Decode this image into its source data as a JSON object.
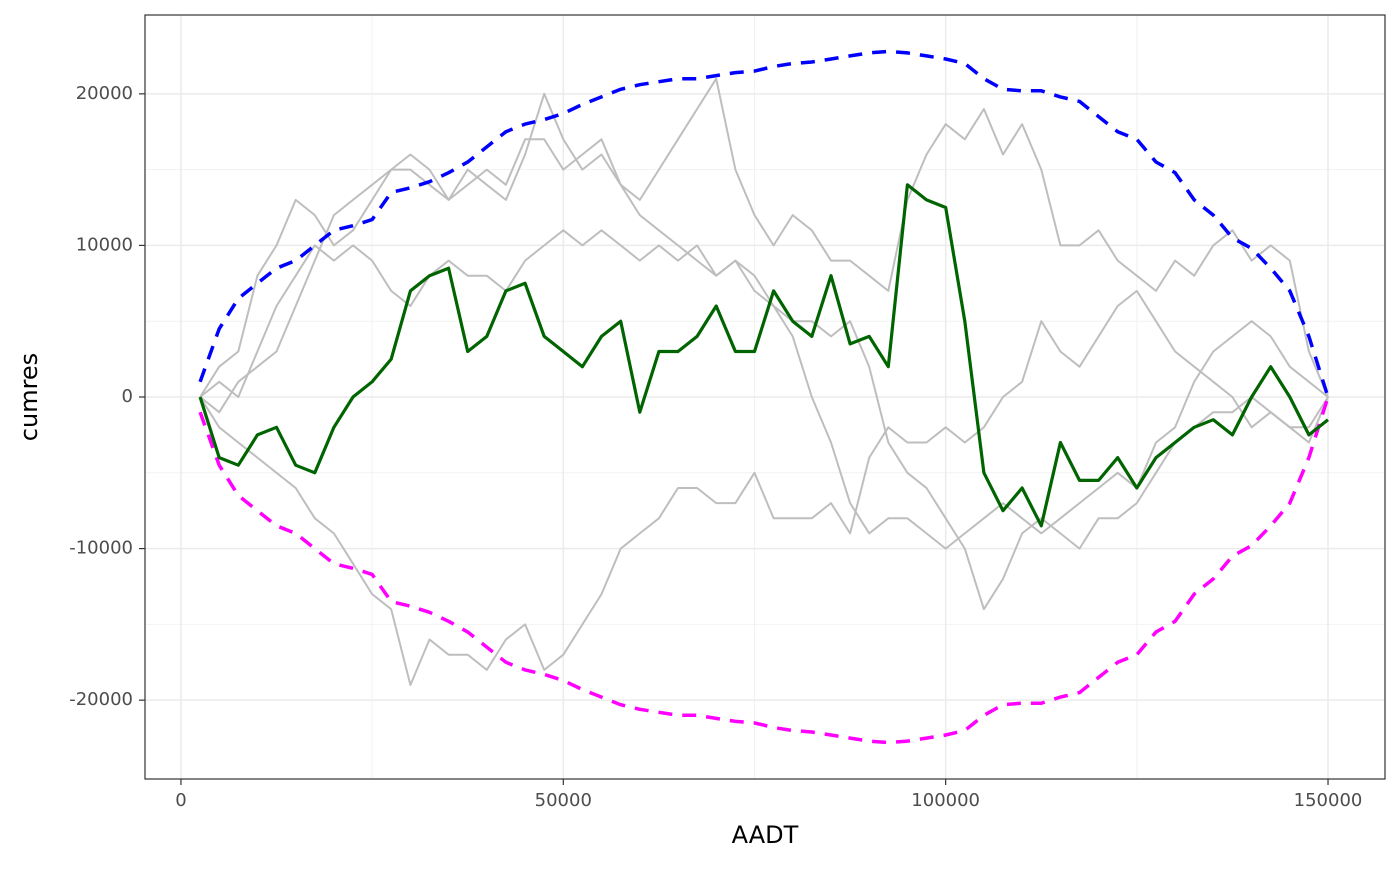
{
  "chart_data": {
    "type": "line",
    "x_label": "AADT",
    "y_label": "cumres",
    "x": [
      2500,
      5000,
      7500,
      10000,
      12500,
      15000,
      17500,
      20000,
      22500,
      25000,
      27500,
      30000,
      32500,
      35000,
      37500,
      40000,
      42500,
      45000,
      47500,
      50000,
      52500,
      55000,
      57500,
      60000,
      62500,
      65000,
      67500,
      70000,
      72500,
      75000,
      77500,
      80000,
      82500,
      85000,
      87500,
      90000,
      92500,
      95000,
      97500,
      100000,
      102500,
      105000,
      107500,
      110000,
      112500,
      115000,
      117500,
      120000,
      122500,
      125000,
      127500,
      130000,
      132500,
      135000,
      137500,
      140000,
      142500,
      145000,
      147500,
      150000
    ],
    "xlim": [
      -4700,
      157450
    ],
    "xticks": [
      0,
      50000,
      100000,
      150000
    ],
    "ylim": [
      -25200,
      25200
    ],
    "yticks": [
      -20000,
      -10000,
      0,
      10000,
      20000
    ],
    "grid": true,
    "series": [
      {
        "color": "#bebebe",
        "width": 2,
        "dash": false,
        "values": [
          0,
          2000,
          3000,
          8000,
          10000,
          13000,
          12000,
          10000,
          11000,
          13000,
          15000,
          15000,
          14000,
          13000,
          15000,
          14000,
          13000,
          16000,
          20000,
          17000,
          15000,
          16000,
          14000,
          13000,
          15000,
          17000,
          19000,
          21000,
          15000,
          12000,
          10000,
          12000,
          11000,
          9000,
          9000,
          8000,
          7000,
          13000,
          16000,
          18000,
          17000,
          19000,
          16000,
          18000,
          15000,
          10000,
          10000,
          11000,
          9000,
          8000,
          7000,
          9000,
          8000,
          10000,
          11000,
          9000,
          10000,
          9000,
          3000,
          0
        ]
      },
      {
        "color": "#bebebe",
        "width": 2,
        "dash": false,
        "values": [
          0,
          -2000,
          -3000,
          -4000,
          -5000,
          -6000,
          -8000,
          -9000,
          -11000,
          -13000,
          -14000,
          -19000,
          -16000,
          -17000,
          -17000,
          -18000,
          -16000,
          -15000,
          -18000,
          -17000,
          -15000,
          -13000,
          -10000,
          -9000,
          -8000,
          -6000,
          -6000,
          -7000,
          -7000,
          -5000,
          -8000,
          -8000,
          -8000,
          -7000,
          -9000,
          -4000,
          -2000,
          -3000,
          -3000,
          -2000,
          -3000,
          -2000,
          0,
          1000,
          5000,
          3000,
          2000,
          4000,
          6000,
          7000,
          5000,
          3000,
          2000,
          1000,
          0,
          -2000,
          -1000,
          -2000,
          -3000,
          0
        ]
      },
      {
        "color": "#bebebe",
        "width": 2,
        "dash": false,
        "values": [
          0,
          -1000,
          1000,
          2000,
          3000,
          6000,
          9000,
          12000,
          13000,
          14000,
          15000,
          16000,
          15000,
          13000,
          14000,
          15000,
          14000,
          17000,
          17000,
          15000,
          16000,
          17000,
          14000,
          12000,
          11000,
          10000,
          9000,
          8000,
          9000,
          8000,
          6000,
          5000,
          5000,
          4000,
          5000,
          2000,
          -3000,
          -5000,
          -6000,
          -8000,
          -10000,
          -14000,
          -12000,
          -9000,
          -8000,
          -9000,
          -10000,
          -8000,
          -8000,
          -7000,
          -5000,
          -3000,
          -2000,
          -1000,
          -1000,
          0,
          -1000,
          -2000,
          -2000,
          0
        ]
      },
      {
        "color": "#bebebe",
        "width": 2,
        "dash": false,
        "values": [
          0,
          1000,
          0,
          3000,
          6000,
          8000,
          10000,
          9000,
          10000,
          9000,
          7000,
          6000,
          8000,
          9000,
          8000,
          8000,
          7000,
          9000,
          10000,
          11000,
          10000,
          11000,
          10000,
          9000,
          10000,
          9000,
          10000,
          8000,
          9000,
          7000,
          6000,
          4000,
          0,
          -3000,
          -7000,
          -9000,
          -8000,
          -8000,
          -9000,
          -10000,
          -9000,
          -8000,
          -7000,
          -8000,
          -9000,
          -8000,
          -7000,
          -6000,
          -5000,
          -6000,
          -3000,
          -2000,
          1000,
          3000,
          4000,
          5000,
          4000,
          2000,
          1000,
          0
        ]
      },
      {
        "color": "#0000ff",
        "width": 3.5,
        "dash": true,
        "values": [
          1000,
          4500,
          6500,
          7500,
          8500,
          9000,
          10000,
          11000,
          11300,
          11700,
          13500,
          13800,
          14200,
          14800,
          15500,
          16500,
          17500,
          18000,
          18300,
          18700,
          19300,
          19800,
          20300,
          20600,
          20800,
          21000,
          21000,
          21200,
          21400,
          21500,
          21800,
          22000,
          22100,
          22300,
          22500,
          22700,
          22800,
          22700,
          22500,
          22300,
          22000,
          21000,
          20300,
          20200,
          20200,
          19800,
          19500,
          18500,
          17500,
          17000,
          15500,
          14800,
          13000,
          12000,
          10500,
          9800,
          8500,
          7000,
          4000,
          0
        ]
      },
      {
        "color": "#ff00ff",
        "width": 3.5,
        "dash": true,
        "values": [
          -1000,
          -4500,
          -6500,
          -7500,
          -8500,
          -9000,
          -10000,
          -11000,
          -11300,
          -11700,
          -13500,
          -13800,
          -14200,
          -14800,
          -15500,
          -16500,
          -17500,
          -18000,
          -18300,
          -18700,
          -19300,
          -19800,
          -20300,
          -20600,
          -20800,
          -21000,
          -21000,
          -21200,
          -21400,
          -21500,
          -21800,
          -22000,
          -22100,
          -22300,
          -22500,
          -22700,
          -22800,
          -22700,
          -22500,
          -22300,
          -22000,
          -21000,
          -20300,
          -20200,
          -20200,
          -19800,
          -19500,
          -18500,
          -17500,
          -17000,
          -15500,
          -14800,
          -13000,
          -12000,
          -10500,
          -9800,
          -8500,
          -7000,
          -4000,
          0
        ]
      },
      {
        "color": "#006400",
        "width": 3.2,
        "dash": false,
        "values": [
          0,
          -4000,
          -4500,
          -2500,
          -2000,
          -4500,
          -5000,
          -2000,
          0,
          1000,
          2500,
          7000,
          8000,
          8500,
          3000,
          4000,
          7000,
          7500,
          4000,
          3000,
          2000,
          4000,
          5000,
          -1000,
          3000,
          3000,
          4000,
          6000,
          3000,
          3000,
          7000,
          5000,
          4000,
          8000,
          3500,
          4000,
          2000,
          14000,
          13000,
          12500,
          5000,
          -5000,
          -7500,
          -6000,
          -8500,
          -3000,
          -5500,
          -5500,
          -4000,
          -6000,
          -4000,
          -3000,
          -2000,
          -1500,
          -2500,
          0,
          2000,
          0,
          -2500,
          -1500
        ]
      }
    ]
  }
}
